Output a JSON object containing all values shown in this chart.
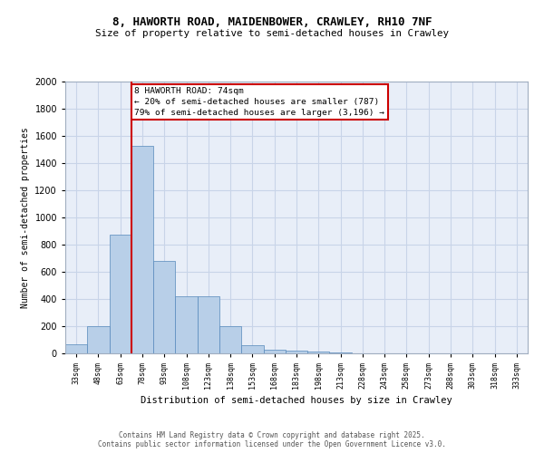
{
  "title_line1": "8, HAWORTH ROAD, MAIDENBOWER, CRAWLEY, RH10 7NF",
  "title_line2": "Size of property relative to semi-detached houses in Crawley",
  "xlabel": "Distribution of semi-detached houses by size in Crawley",
  "ylabel": "Number of semi-detached properties",
  "bar_categories": [
    "33sqm",
    "48sqm",
    "63sqm",
    "78sqm",
    "93sqm",
    "108sqm",
    "123sqm",
    "138sqm",
    "153sqm",
    "168sqm",
    "183sqm",
    "198sqm",
    "213sqm",
    "228sqm",
    "243sqm",
    "258sqm",
    "273sqm",
    "288sqm",
    "303sqm",
    "318sqm",
    "333sqm"
  ],
  "bar_values": [
    70,
    200,
    875,
    1530,
    680,
    420,
    420,
    200,
    60,
    30,
    20,
    15,
    10,
    0,
    0,
    0,
    0,
    0,
    0,
    0,
    0
  ],
  "bar_color": "#b8cfe8",
  "bar_edge_color": "#5588bb",
  "subject_line_color": "#cc0000",
  "annotation_title": "8 HAWORTH ROAD: 74sqm",
  "annotation_line1": "← 20% of semi-detached houses are smaller (787)",
  "annotation_line2": "79% of semi-detached houses are larger (3,196) →",
  "annotation_box_color": "#cc0000",
  "ylim": [
    0,
    2000
  ],
  "yticks": [
    0,
    200,
    400,
    600,
    800,
    1000,
    1200,
    1400,
    1600,
    1800,
    2000
  ],
  "grid_color": "#c8d4e8",
  "bg_color": "#e8eef8",
  "footer_line1": "Contains HM Land Registry data © Crown copyright and database right 2025.",
  "footer_line2": "Contains public sector information licensed under the Open Government Licence v3.0."
}
